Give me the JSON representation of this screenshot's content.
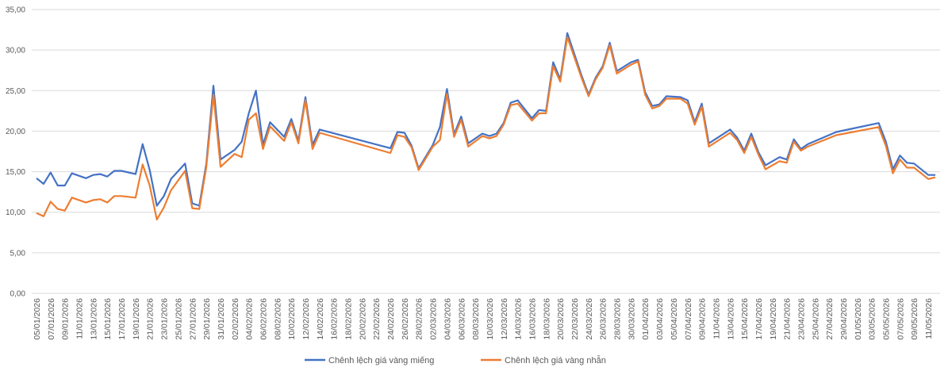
{
  "chart_data": {
    "type": "line",
    "ylim": [
      0,
      35
    ],
    "yticks": [
      "0,00",
      "5,00",
      "10,00",
      "15,00",
      "20,00",
      "25,00",
      "30,00",
      "35,00"
    ],
    "grid": true,
    "legend_position": "bottom",
    "x_tick_labels": [
      "05/01/2026",
      "07/01/2026",
      "09/01/2026",
      "11/01/2026",
      "13/01/2026",
      "15/01/2026",
      "17/01/2026",
      "19/01/2026",
      "21/01/2026",
      "23/01/2026",
      "25/01/2026",
      "27/01/2026",
      "29/01/2026",
      "31/01/2026",
      "02/02/2026",
      "04/02/2026",
      "06/02/2026",
      "08/02/2026",
      "10/02/2026",
      "12/02/2026",
      "14/02/2026",
      "16/02/2026",
      "18/02/2026",
      "20/02/2026",
      "22/02/2026",
      "24/02/2026",
      "26/02/2026",
      "28/02/2026",
      "02/03/2026",
      "04/03/2026",
      "06/03/2026",
      "08/03/2026",
      "10/03/2026",
      "12/03/2026",
      "14/03/2026",
      "16/03/2026",
      "18/03/2026",
      "20/03/2026",
      "22/03/2026",
      "24/03/2026",
      "26/03/2026",
      "28/03/2026",
      "30/03/2026",
      "01/04/2026",
      "03/04/2026",
      "05/04/2026",
      "07/04/2026",
      "09/04/2026",
      "11/04/2026",
      "13/04/2026",
      "15/04/2026",
      "17/04/2026",
      "19/04/2026",
      "21/04/2026",
      "23/04/2026",
      "25/04/2026",
      "27/04/2026",
      "29/04/2026",
      "01/05/2026",
      "03/05/2026",
      "05/05/2026",
      "07/05/2026",
      "09/05/2026",
      "11/05/2026"
    ],
    "x": [
      "05/01/2026",
      "06/01/2026",
      "07/01/2026",
      "08/01/2026",
      "09/01/2026",
      "10/01/2026",
      "12/01/2026",
      "13/01/2026",
      "14/01/2026",
      "15/01/2026",
      "16/01/2026",
      "17/01/2026",
      "19/01/2026",
      "20/01/2026",
      "21/01/2026",
      "22/01/2026",
      "23/01/2026",
      "24/01/2026",
      "26/01/2026",
      "27/01/2026",
      "28/01/2026",
      "29/01/2026",
      "30/01/2026",
      "31/01/2026",
      "02/02/2026",
      "03/02/2026",
      "04/02/2026",
      "05/02/2026",
      "06/02/2026",
      "07/02/2026",
      "09/02/2026",
      "10/02/2026",
      "11/02/2026",
      "12/02/2026",
      "13/02/2026",
      "14/02/2026",
      "24/02/2026",
      "25/02/2026",
      "26/02/2026",
      "27/02/2026",
      "28/02/2026",
      "02/03/2026",
      "03/03/2026",
      "04/03/2026",
      "05/03/2026",
      "06/03/2026",
      "07/03/2026",
      "09/03/2026",
      "10/03/2026",
      "11/03/2026",
      "12/03/2026",
      "13/03/2026",
      "14/03/2026",
      "16/03/2026",
      "17/03/2026",
      "18/03/2026",
      "19/03/2026",
      "20/03/2026",
      "21/03/2026",
      "23/03/2026",
      "24/03/2026",
      "25/03/2026",
      "26/03/2026",
      "27/03/2026",
      "28/03/2026",
      "30/03/2026",
      "31/03/2026",
      "01/04/2026",
      "02/04/2026",
      "03/04/2026",
      "04/04/2026",
      "06/04/2026",
      "07/04/2026",
      "08/04/2026",
      "09/04/2026",
      "10/04/2026",
      "13/04/2026",
      "14/04/2026",
      "15/04/2026",
      "16/04/2026",
      "17/04/2026",
      "18/04/2026",
      "20/04/2026",
      "21/04/2026",
      "22/04/2026",
      "23/04/2026",
      "24/04/2026",
      "28/04/2026",
      "04/05/2026",
      "05/05/2026",
      "06/05/2026",
      "07/05/2026",
      "08/05/2026",
      "09/05/2026",
      "11/05/2026",
      "12/05/2026"
    ],
    "series": [
      {
        "name": "Chênh lệch giá vàng miếng",
        "color": "#4472c4",
        "values": [
          14.2,
          13.5,
          14.9,
          13.3,
          13.3,
          14.8,
          14.2,
          14.6,
          14.7,
          14.4,
          15.1,
          15.1,
          14.7,
          18.4,
          15.2,
          10.8,
          12.0,
          14.1,
          16.0,
          11.1,
          10.8,
          16.0,
          25.6,
          16.5,
          17.7,
          18.7,
          22.2,
          25.0,
          18.3,
          21.1,
          19.3,
          21.5,
          18.8,
          24.2,
          18.3,
          20.2,
          17.9,
          19.9,
          19.8,
          18.2,
          15.4,
          18.3,
          20.5,
          25.2,
          19.6,
          21.8,
          18.5,
          19.7,
          19.4,
          19.7,
          21.0,
          23.5,
          23.8,
          21.6,
          22.6,
          22.5,
          28.5,
          26.4,
          32.1,
          26.9,
          24.5,
          26.6,
          28.0,
          30.9,
          27.4,
          28.5,
          28.8,
          24.8,
          23.1,
          23.3,
          24.3,
          24.2,
          23.8,
          21.1,
          23.4,
          18.5,
          20.2,
          19.2,
          17.6,
          19.7,
          17.4,
          15.8,
          16.8,
          16.5,
          19.0,
          17.8,
          18.4,
          19.9,
          21.0,
          18.7,
          15.3,
          17.0,
          16.1,
          16.0,
          14.6,
          14.6
        ],
        "values_note": ""
      },
      {
        "name": "Chênh lệch giá vàng nhẫn",
        "color": "#ed7d31",
        "values": [
          9.9,
          9.5,
          11.3,
          10.4,
          10.2,
          11.8,
          11.2,
          11.5,
          11.6,
          11.2,
          12.0,
          12.0,
          11.8,
          15.9,
          13.3,
          9.1,
          10.6,
          12.7,
          15.1,
          10.5,
          10.4,
          15.6,
          24.5,
          15.6,
          17.2,
          16.8,
          21.4,
          22.2,
          17.8,
          20.6,
          18.8,
          21.1,
          18.5,
          23.8,
          17.8,
          19.8,
          17.3,
          19.5,
          19.3,
          18.0,
          15.2,
          18.1,
          18.9,
          24.6,
          19.3,
          21.4,
          18.1,
          19.4,
          19.1,
          19.4,
          20.8,
          23.2,
          23.4,
          21.3,
          22.2,
          22.2,
          28.0,
          26.1,
          31.6,
          26.6,
          24.3,
          26.4,
          27.8,
          30.6,
          27.1,
          28.2,
          28.6,
          24.5,
          22.8,
          23.1,
          24.0,
          24.0,
          23.4,
          20.8,
          23.0,
          18.1,
          19.8,
          18.9,
          17.3,
          19.3,
          17.1,
          15.3,
          16.3,
          16.1,
          18.7,
          17.6,
          18.1,
          19.5,
          20.5,
          18.2,
          14.8,
          16.5,
          15.5,
          15.5,
          14.1,
          14.3
        ],
        "values_note": ""
      }
    ]
  }
}
